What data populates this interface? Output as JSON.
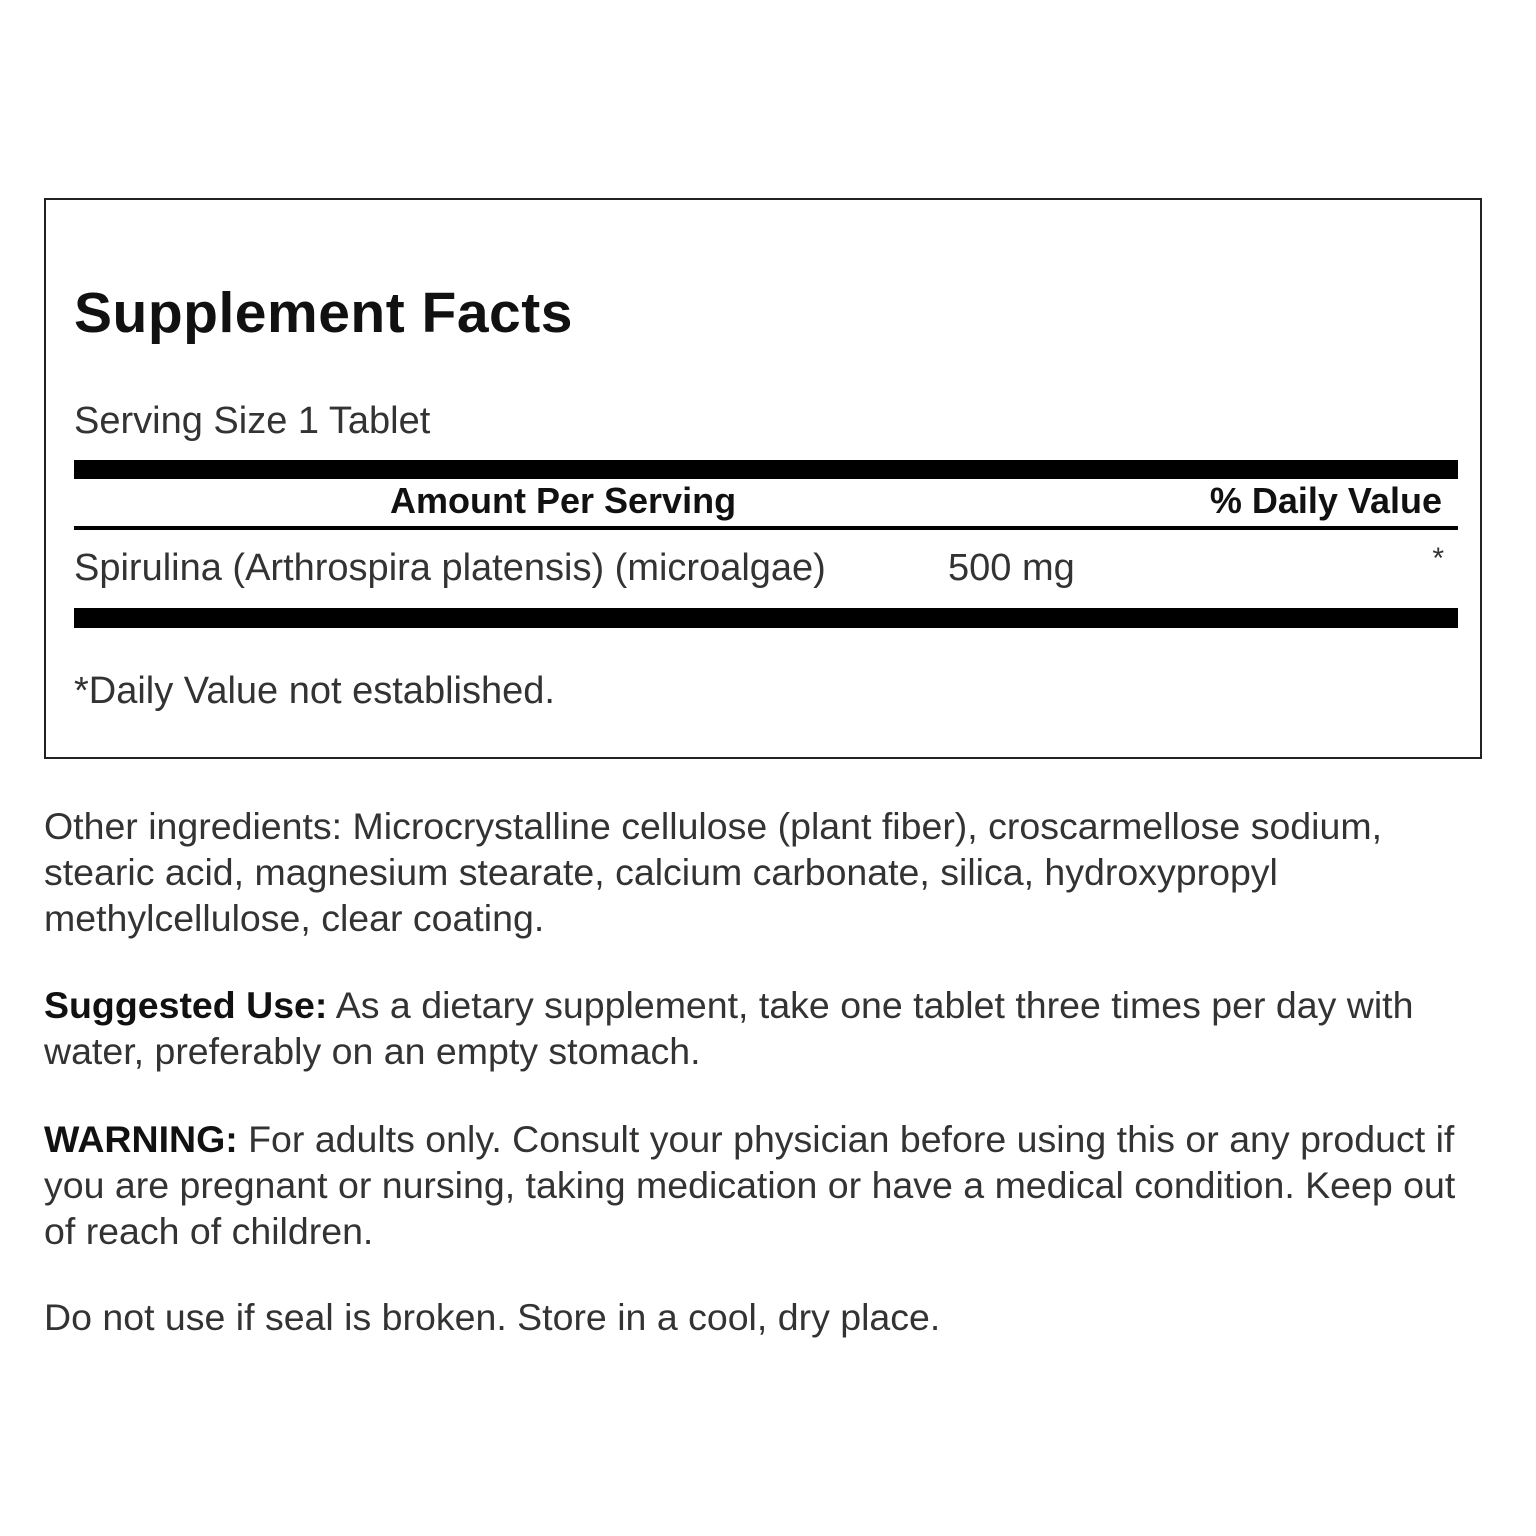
{
  "facts": {
    "title": "Supplement Facts",
    "serving_size": "Serving Size 1 Tablet",
    "header_amount": "Amount Per Serving",
    "header_dv": "% Daily Value",
    "rows": [
      {
        "ingredient": "Spirulina (Arthrospira platensis) (microalgae)",
        "amount": "500 mg",
        "dv": "*"
      }
    ],
    "footnote": "*Daily Value not established."
  },
  "other_ingredients": "Other ingredients: Microcrystalline cellulose (plant fiber), croscarmellose sodium, stearic acid, magnesium stearate, calcium carbonate, silica, hydroxypropyl methylcellulose, clear coating.",
  "suggested_use": {
    "label": "Suggested Use:",
    "text": " As a dietary supplement, take one tablet three times per day with water, preferably on an empty stomach."
  },
  "warning": {
    "label": "WARNING:",
    "text": " For adults only. Consult your physician before using this or any product if you are pregnant or nursing, taking medication or have a medical condition. Keep out of reach of children."
  },
  "storage": "Do not use if seal is broken. Store in a cool, dry place."
}
